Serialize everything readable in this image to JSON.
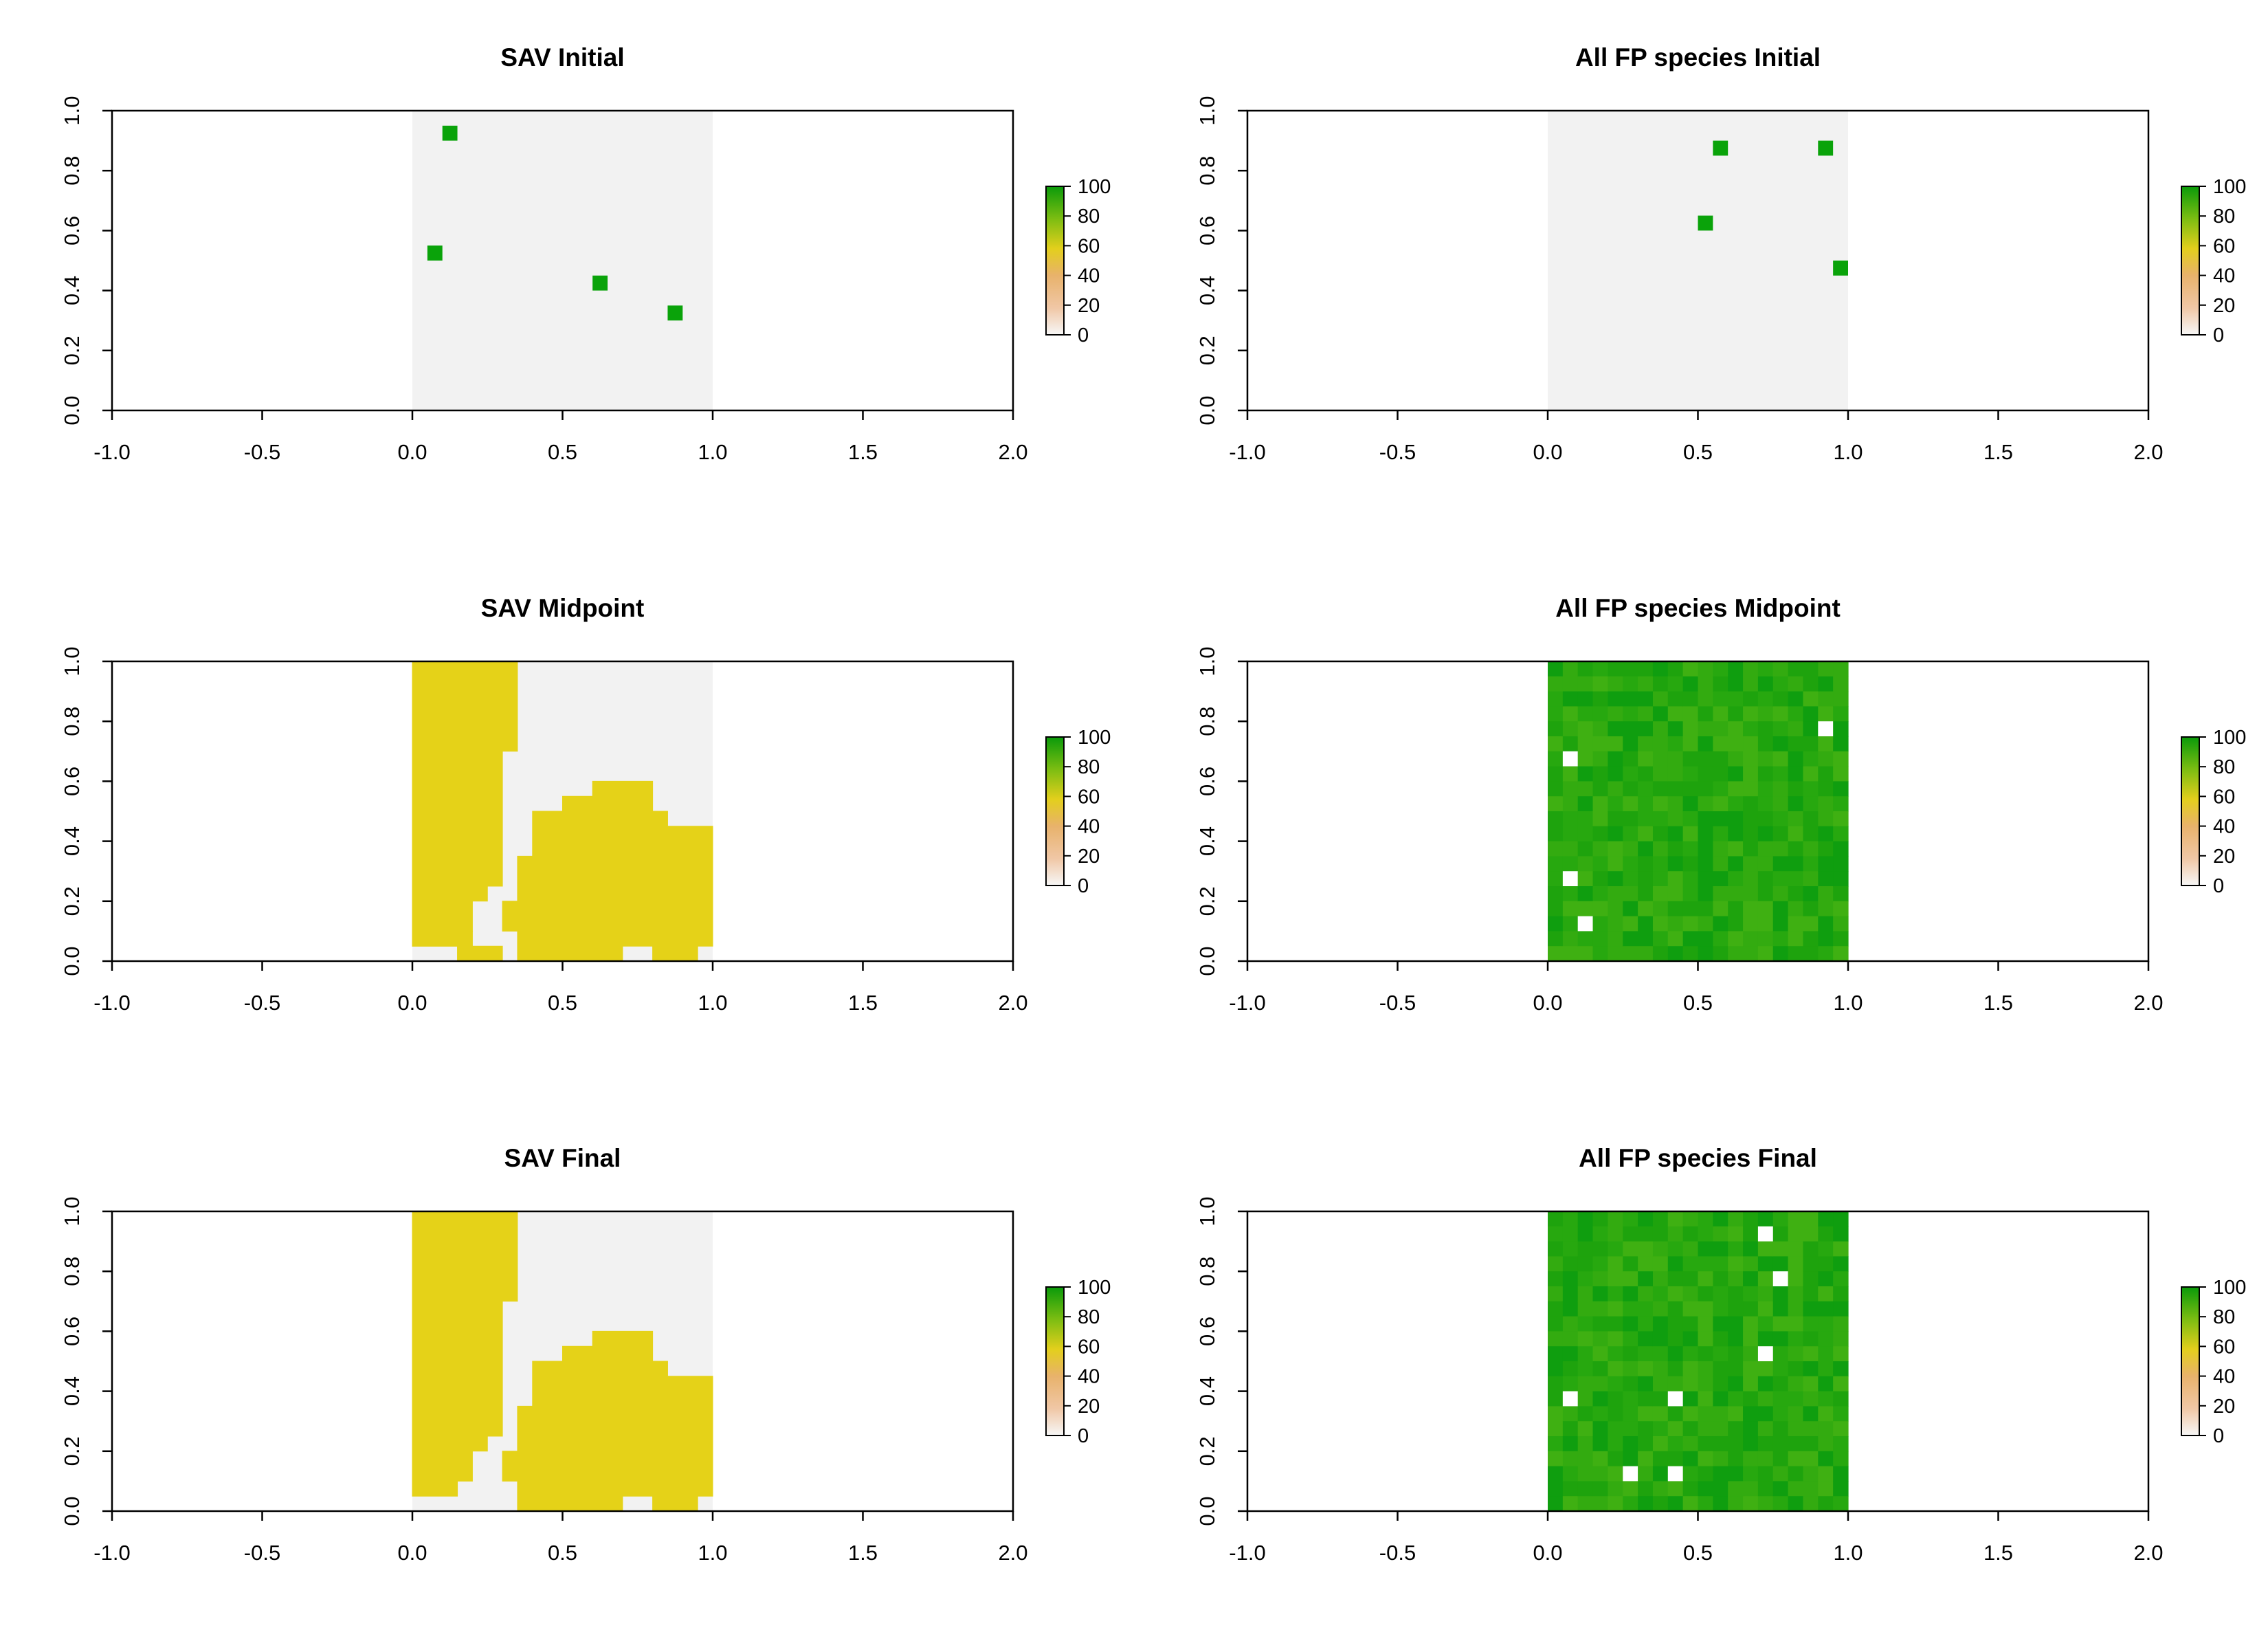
{
  "colorbar_ticks": [
    "0",
    "20",
    "40",
    "60",
    "80",
    "100"
  ],
  "colors": {
    "background_cell": "#f2f2f2",
    "sav_yellow": "#e5d218",
    "sav_yellow_alt": "#e3cf1c",
    "fp_green_dark": "#0f9e0f",
    "fp_green_mid": "#27a80f",
    "fp_green_light": "#3fb012",
    "point_green": "#0aa30a",
    "axis": "#000000"
  },
  "chart_data": [
    {
      "type": "heatmap",
      "title": "SAV Initial",
      "xlim": [
        -1.0,
        2.0
      ],
      "ylim": [
        0.0,
        1.0
      ],
      "xticks": [
        "-1.0",
        "-0.5",
        "0.0",
        "0.5",
        "1.0",
        "1.5",
        "2.0"
      ],
      "yticks": [
        "0.0",
        "0.2",
        "0.4",
        "0.6",
        "0.8",
        "1.0"
      ],
      "grid_extent": {
        "x": [
          0,
          1
        ],
        "y": [
          0,
          1
        ]
      },
      "legend_range": [
        0,
        100
      ],
      "fill_mode": "points",
      "points": [
        [
          0.125,
          0.925
        ],
        [
          0.075,
          0.525
        ],
        [
          0.625,
          0.425
        ],
        [
          0.875,
          0.325
        ]
      ]
    },
    {
      "type": "heatmap",
      "title": "All FP species Initial",
      "xlim": [
        -1.0,
        2.0
      ],
      "ylim": [
        0.0,
        1.0
      ],
      "xticks": [
        "-1.0",
        "-0.5",
        "0.0",
        "0.5",
        "1.0",
        "1.5",
        "2.0"
      ],
      "yticks": [
        "0.0",
        "0.2",
        "0.4",
        "0.6",
        "0.8",
        "1.0"
      ],
      "grid_extent": {
        "x": [
          0,
          1
        ],
        "y": [
          0,
          1
        ]
      },
      "legend_range": [
        0,
        100
      ],
      "fill_mode": "points",
      "points": [
        [
          0.575,
          0.875
        ],
        [
          0.925,
          0.875
        ],
        [
          0.525,
          0.625
        ],
        [
          0.975,
          0.475
        ]
      ]
    },
    {
      "type": "heatmap",
      "title": "SAV Midpoint",
      "xlim": [
        -1.0,
        2.0
      ],
      "ylim": [
        0.0,
        1.0
      ],
      "xticks": [
        "-1.0",
        "-0.5",
        "0.0",
        "0.5",
        "1.0",
        "1.5",
        "2.0"
      ],
      "yticks": [
        "0.0",
        "0.2",
        "0.4",
        "0.6",
        "0.8",
        "1.0"
      ],
      "grid_extent": {
        "x": [
          0,
          1
        ],
        "y": [
          0,
          1
        ]
      },
      "legend_range": [
        0,
        100
      ],
      "fill_mode": "regions",
      "regions": [
        [
          [
            0,
            0.05
          ],
          [
            0.15,
            0.05
          ],
          [
            0.15,
            0
          ],
          [
            0.3,
            0
          ],
          [
            0.3,
            0.05
          ],
          [
            0.2,
            0.05
          ],
          [
            0.2,
            0.1
          ],
          [
            0.2,
            0.1
          ],
          [
            0.2,
            0.1
          ],
          [
            0,
            0.1
          ]
        ],
        [
          [
            0,
            0.05
          ],
          [
            0.15,
            0.05
          ],
          [
            0.15,
            0.1
          ],
          [
            0.2,
            0.1
          ],
          [
            0.2,
            0.2
          ],
          [
            0.25,
            0.2
          ],
          [
            0.25,
            0.25
          ],
          [
            0.3,
            0.25
          ],
          [
            0.3,
            0.7
          ],
          [
            0.35,
            0.7
          ],
          [
            0.35,
            1.0
          ],
          [
            0,
            1.0
          ]
        ],
        [
          [
            0.35,
            0.0
          ],
          [
            0.7,
            0.0
          ],
          [
            0.7,
            0.05
          ],
          [
            0.8,
            0.05
          ],
          [
            0.8,
            0.0
          ],
          [
            0.95,
            0.0
          ],
          [
            0.95,
            0.05
          ],
          [
            1.0,
            0.05
          ],
          [
            1.0,
            0.45
          ],
          [
            0.85,
            0.45
          ],
          [
            0.85,
            0.5
          ],
          [
            0.8,
            0.5
          ],
          [
            0.8,
            0.6
          ],
          [
            0.6,
            0.6
          ],
          [
            0.6,
            0.55
          ],
          [
            0.5,
            0.55
          ],
          [
            0.5,
            0.5
          ],
          [
            0.4,
            0.5
          ],
          [
            0.4,
            0.35
          ],
          [
            0.35,
            0.35
          ],
          [
            0.35,
            0.2
          ],
          [
            0.3,
            0.2
          ],
          [
            0.3,
            0.1
          ],
          [
            0.35,
            0.1
          ]
        ]
      ]
    },
    {
      "type": "heatmap",
      "title": "All FP species Midpoint",
      "xlim": [
        -1.0,
        2.0
      ],
      "ylim": [
        0.0,
        1.0
      ],
      "xticks": [
        "-1.0",
        "-0.5",
        "0.0",
        "0.5",
        "1.0",
        "1.5",
        "2.0"
      ],
      "yticks": [
        "0.0",
        "0.2",
        "0.4",
        "0.6",
        "0.8",
        "1.0"
      ],
      "grid_extent": {
        "x": [
          0,
          1
        ],
        "y": [
          0,
          1
        ]
      },
      "legend_range": [
        0,
        100
      ],
      "fill_mode": "full_green",
      "empty_cells": [
        [
          0.925,
          0.775
        ],
        [
          0.075,
          0.675
        ],
        [
          0.075,
          0.275
        ],
        [
          0.125,
          0.125
        ]
      ]
    },
    {
      "type": "heatmap",
      "title": "SAV Final",
      "xlim": [
        -1.0,
        2.0
      ],
      "ylim": [
        0.0,
        1.0
      ],
      "xticks": [
        "-1.0",
        "-0.5",
        "0.0",
        "0.5",
        "1.0",
        "1.5",
        "2.0"
      ],
      "yticks": [
        "0.0",
        "0.2",
        "0.4",
        "0.6",
        "0.8",
        "1.0"
      ],
      "grid_extent": {
        "x": [
          0,
          1
        ],
        "y": [
          0,
          1
        ]
      },
      "legend_range": [
        0,
        100
      ],
      "fill_mode": "regions",
      "regions": [
        [
          [
            0,
            0.05
          ],
          [
            0.15,
            0.05
          ],
          [
            0.15,
            0.1
          ],
          [
            0.2,
            0.1
          ],
          [
            0.2,
            0.2
          ],
          [
            0.25,
            0.2
          ],
          [
            0.25,
            0.25
          ],
          [
            0.3,
            0.25
          ],
          [
            0.3,
            0.7
          ],
          [
            0.35,
            0.7
          ],
          [
            0.35,
            1.0
          ],
          [
            0,
            1.0
          ]
        ],
        [
          [
            0.35,
            0.0
          ],
          [
            0.7,
            0.0
          ],
          [
            0.7,
            0.05
          ],
          [
            0.8,
            0.05
          ],
          [
            0.8,
            0.0
          ],
          [
            0.95,
            0.0
          ],
          [
            0.95,
            0.05
          ],
          [
            1.0,
            0.05
          ],
          [
            1.0,
            0.45
          ],
          [
            0.85,
            0.45
          ],
          [
            0.85,
            0.5
          ],
          [
            0.8,
            0.5
          ],
          [
            0.8,
            0.6
          ],
          [
            0.6,
            0.6
          ],
          [
            0.6,
            0.55
          ],
          [
            0.5,
            0.55
          ],
          [
            0.5,
            0.5
          ],
          [
            0.4,
            0.5
          ],
          [
            0.4,
            0.35
          ],
          [
            0.35,
            0.35
          ],
          [
            0.35,
            0.2
          ],
          [
            0.3,
            0.2
          ],
          [
            0.3,
            0.1
          ],
          [
            0.35,
            0.1
          ]
        ]
      ]
    },
    {
      "type": "heatmap",
      "title": "All FP species Final",
      "xlim": [
        -1.0,
        2.0
      ],
      "ylim": [
        0.0,
        1.0
      ],
      "xticks": [
        "-1.0",
        "-0.5",
        "0.0",
        "0.5",
        "1.0",
        "1.5",
        "2.0"
      ],
      "yticks": [
        "0.0",
        "0.2",
        "0.4",
        "0.6",
        "0.8",
        "1.0"
      ],
      "grid_extent": {
        "x": [
          0,
          1
        ],
        "y": [
          0,
          1
        ]
      },
      "legend_range": [
        0,
        100
      ],
      "fill_mode": "full_green",
      "empty_cells": [
        [
          0.725,
          0.925
        ],
        [
          0.775,
          0.775
        ],
        [
          0.725,
          0.525
        ],
        [
          0.075,
          0.375
        ],
        [
          0.425,
          0.375
        ],
        [
          0.275,
          0.125
        ],
        [
          0.425,
          0.125
        ]
      ]
    }
  ]
}
